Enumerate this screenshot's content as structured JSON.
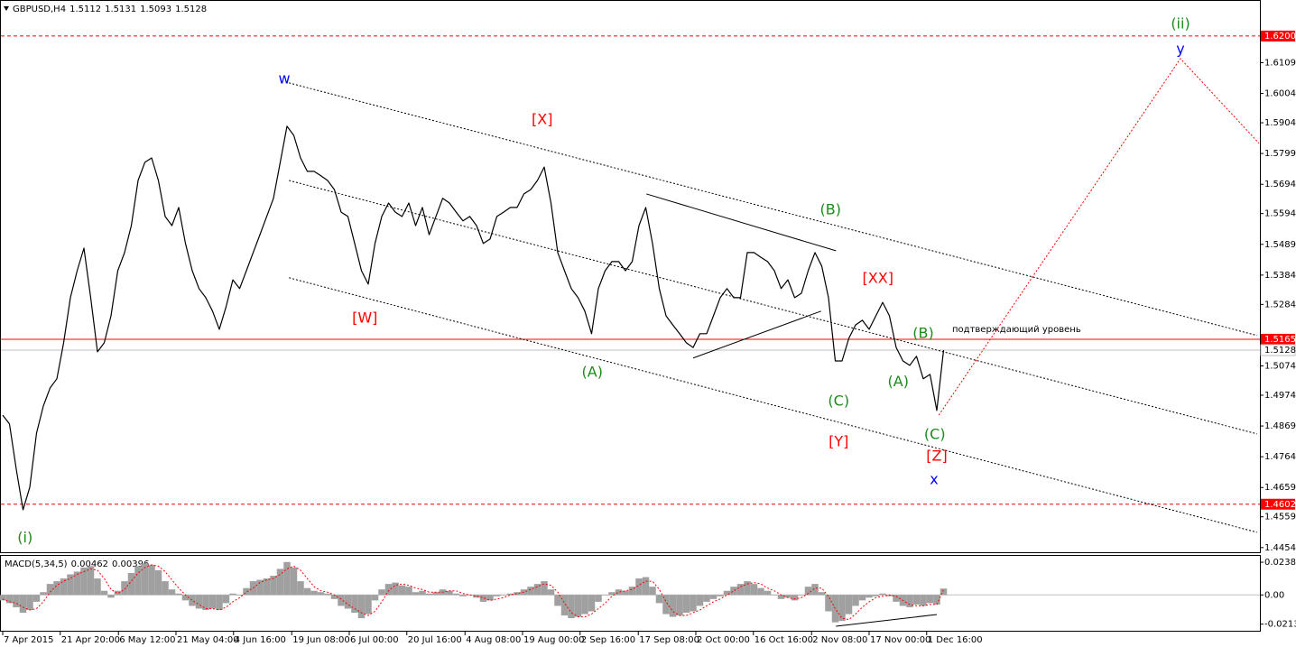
{
  "chart_data": [
    {
      "type": "line",
      "title": "GBPUSD,H4",
      "last_bar": [
        1.5112,
        1.5131,
        1.5093
      ],
      "color": "#000000",
      "grid": false,
      "xlim": [
        0,
        185.6
      ],
      "ylim": [
        1.4438,
        1.6323
      ],
      "xticks": [
        {
          "value": 0,
          "label": "7 Apr 2015"
        },
        {
          "value": 8.5,
          "label": "21 Apr 20:00"
        },
        {
          "value": 17.1,
          "label": "6 May 12:00"
        },
        {
          "value": 25.6,
          "label": "21 May 04:00"
        },
        {
          "value": 34.1,
          "label": "4 Jun 16:00"
        },
        {
          "value": 42.7,
          "label": "19 Jun 08:00"
        },
        {
          "value": 51.2,
          "label": "6 Jul 00:00"
        },
        {
          "value": 59.7,
          "label": "20 Jul 16:00"
        },
        {
          "value": 68.3,
          "label": "4 Aug 08:00"
        },
        {
          "value": 76.8,
          "label": "19 Aug 00:00"
        },
        {
          "value": 85.3,
          "label": "2 Sep 16:00"
        },
        {
          "value": 93.9,
          "label": "17 Sep 08:00"
        },
        {
          "value": 102.4,
          "label": "2 Oct 00:00"
        },
        {
          "value": 110.9,
          "label": "16 Oct 16:00"
        },
        {
          "value": 119.5,
          "label": "2 Nov 08:00"
        },
        {
          "value": 128,
          "label": "17 Nov 00:00"
        },
        {
          "value": 136.5,
          "label": "1 Dec 16:00"
        }
      ],
      "yticks": [
        1.6109,
        1.6004,
        1.5904,
        1.5799,
        1.5694,
        1.5594,
        1.5489,
        1.5384,
        1.5284,
        1.5074,
        1.4974,
        1.4869,
        1.4764,
        1.4659,
        1.4559,
        1.4454
      ],
      "values": [
        1.4906,
        1.4876,
        1.4722,
        1.4583,
        1.466,
        1.4845,
        1.4937,
        1.4999,
        1.503,
        1.5153,
        1.5307,
        1.5399,
        1.5476,
        1.5307,
        1.5122,
        1.5153,
        1.5245,
        1.5399,
        1.5461,
        1.5553,
        1.5707,
        1.5769,
        1.5784,
        1.5707,
        1.5584,
        1.5553,
        1.5615,
        1.5492,
        1.5399,
        1.5338,
        1.5307,
        1.5261,
        1.5199,
        1.5276,
        1.5368,
        1.5338,
        1.5399,
        1.5461,
        1.5522,
        1.5584,
        1.5646,
        1.5769,
        1.5892,
        1.5861,
        1.5784,
        1.5738,
        1.5738,
        1.5723,
        1.5707,
        1.5676,
        1.5599,
        1.5584,
        1.5492,
        1.5399,
        1.5353,
        1.5492,
        1.5584,
        1.563,
        1.5599,
        1.5584,
        1.563,
        1.5553,
        1.5615,
        1.5522,
        1.5584,
        1.5646,
        1.563,
        1.5599,
        1.5569,
        1.5584,
        1.5553,
        1.5492,
        1.5507,
        1.5584,
        1.5599,
        1.5615,
        1.5615,
        1.5661,
        1.5676,
        1.5707,
        1.5753,
        1.563,
        1.5461,
        1.5399,
        1.5338,
        1.5307,
        1.5261,
        1.5184,
        1.5338,
        1.5399,
        1.543,
        1.543,
        1.5399,
        1.543,
        1.5553,
        1.5615,
        1.5492,
        1.5338,
        1.5245,
        1.5214,
        1.5184,
        1.5153,
        1.5137,
        1.5184,
        1.5184,
        1.5245,
        1.5307,
        1.5338,
        1.5307,
        1.5307,
        1.5461,
        1.5461,
        1.5445,
        1.543,
        1.5399,
        1.5338,
        1.5368,
        1.5307,
        1.5322,
        1.5399,
        1.5461,
        1.5415,
        1.5307,
        1.5091,
        1.5091,
        1.5168,
        1.5214,
        1.523,
        1.5199,
        1.5245,
        1.5291,
        1.5245,
        1.5137,
        1.5091,
        1.5076,
        1.5107,
        1.503,
        1.5045,
        1.4922,
        1.5128
      ],
      "levels": [
        {
          "value": 1.62,
          "label": "1.6200",
          "color": "#ff0000",
          "style": "dashed"
        },
        {
          "value": 1.5165,
          "label": "1.5165",
          "color": "#ff0000",
          "style": "solid",
          "text": "подтверждающий уровень"
        },
        {
          "value": 1.4602,
          "label": "1.4602",
          "color": "#ff0000",
          "style": "dashed"
        }
      ],
      "lines": [
        {
          "x": [
            42.3,
            185.3
          ],
          "y": [
            1.604,
            1.5178
          ],
          "color": "#000000",
          "style": "dotted"
        },
        {
          "x": [
            42.3,
            185.3
          ],
          "y": [
            1.5707,
            1.4842
          ],
          "color": "#000000",
          "style": "dotted"
        },
        {
          "x": [
            42.3,
            185.3
          ],
          "y": [
            1.5375,
            1.4506
          ],
          "color": "#000000",
          "style": "dotted"
        },
        {
          "x": [
            95.1,
            123.1
          ],
          "y": [
            1.5661,
            1.5467
          ],
          "color": "#000000",
          "style": "solid"
        },
        {
          "x": [
            102,
            120.9
          ],
          "y": [
            1.5101,
            1.5261
          ],
          "color": "#000000",
          "style": "solid"
        },
        {
          "x": [
            138.3,
            174,
            185.6
          ],
          "y": [
            1.4906,
            1.6123,
            1.5834
          ],
          "color": "#ff0000",
          "style": "dotted"
        }
      ],
      "annotations": [
        {
          "text": "(i)",
          "x": 3.3,
          "y": 1.4485,
          "color": "#1a8c1a"
        },
        {
          "text": "w",
          "x": 41.6,
          "y": 1.6052,
          "color": "#0000ff"
        },
        {
          "text": "[X]",
          "x": 79.7,
          "y": 1.5914,
          "color": "#ff0000"
        },
        {
          "text": "[W]",
          "x": 53.5,
          "y": 1.5236,
          "color": "#ff0000"
        },
        {
          "text": "(A)",
          "x": 87.1,
          "y": 1.5051,
          "color": "#1a8c1a"
        },
        {
          "text": "(B)",
          "x": 122.3,
          "y": 1.5606,
          "color": "#1a8c1a"
        },
        {
          "text": "[XX]",
          "x": 129.3,
          "y": 1.5372,
          "color": "#ff0000"
        },
        {
          "text": "(C)",
          "x": 123.5,
          "y": 1.4953,
          "color": "#1a8c1a"
        },
        {
          "text": "[Y]",
          "x": 123.5,
          "y": 1.4814,
          "color": "#ff0000"
        },
        {
          "text": "(B)",
          "x": 136,
          "y": 1.5184,
          "color": "#1a8c1a"
        },
        {
          "text": "(A)",
          "x": 132.3,
          "y": 1.5018,
          "color": "#1a8c1a"
        },
        {
          "text": "(C)",
          "x": 137.7,
          "y": 1.4839,
          "color": "#1a8c1a"
        },
        {
          "text": "[Z]",
          "x": 138,
          "y": 1.4765,
          "color": "#ff0000"
        },
        {
          "text": "x",
          "x": 137.6,
          "y": 1.4685,
          "color": "#0000ff"
        },
        {
          "text": "(ii)",
          "x": 174,
          "y": 1.624,
          "color": "#1a8c1a"
        },
        {
          "text": "y",
          "x": 174,
          "y": 1.6154,
          "color": "#0000ff"
        }
      ]
    },
    {
      "type": "bar",
      "title": "MACD(5,34,5)",
      "color": "#a0a0a0",
      "signal_color": "#ff0000",
      "xlim": [
        0,
        185.6
      ],
      "ylim": [
        -0.0255,
        0.0285
      ],
      "yticks": [
        0.02386,
        {
          "value": 0,
          "label": "0.00"
        },
        -0.02132
      ],
      "values": [
        -0.004,
        -0.006,
        -0.009,
        -0.013,
        -0.011,
        -0.005,
        0.002,
        0.008,
        0.01,
        0.012,
        0.015,
        0.017,
        0.02,
        0.021,
        0.012,
        0.003,
        -0.002,
        0.003,
        0.01,
        0.016,
        0.021,
        0.023,
        0.022,
        0.018,
        0.01,
        0.004,
        0.001,
        -0.004,
        -0.008,
        -0.01,
        -0.011,
        -0.01,
        -0.011,
        -0.006,
        0.001,
        0,
        0.005,
        0.01,
        0.011,
        0.012,
        0.014,
        0.019,
        0.024,
        0.02,
        0.01,
        0.005,
        0.003,
        0.002,
        0.001,
        -0.003,
        -0.008,
        -0.01,
        -0.013,
        -0.017,
        -0.014,
        -0.004,
        0.004,
        0.008,
        0.009,
        0.007,
        0.006,
        0.002,
        0.003,
        0.001,
        0.002,
        0.004,
        0.003,
        0.001,
        -0.001,
        0,
        -0.002,
        -0.005,
        -0.004,
        -0.001,
        0,
        0.001,
        0.002,
        0.004,
        0.006,
        0.008,
        0.01,
        0.004,
        -0.008,
        -0.015,
        -0.017,
        -0.016,
        -0.014,
        -0.012,
        -0.005,
        0,
        0.002,
        0.004,
        0.003,
        0.006,
        0.012,
        0.013,
        0.006,
        -0.006,
        -0.014,
        -0.016,
        -0.015,
        -0.013,
        -0.012,
        -0.008,
        -0.005,
        -0.003,
        -0.001,
        0.003,
        0.006,
        0.008,
        0.01,
        0.008,
        0.005,
        0.003,
        0,
        -0.003,
        -0.002,
        -0.004,
        0,
        0.006,
        0.008,
        0.002,
        -0.012,
        -0.02,
        -0.019,
        -0.014,
        -0.008,
        -0.004,
        -0.002,
        -0.001,
        0.001,
        -0.001,
        -0.005,
        -0.008,
        -0.009,
        -0.007,
        -0.008,
        -0.006,
        -0.007,
        0.00462
      ],
      "signal": [
        -0.003,
        -0.005,
        -0.006,
        -0.009,
        -0.011,
        -0.01,
        -0.005,
        0.002,
        0.007,
        0.01,
        0.012,
        0.015,
        0.017,
        0.019,
        0.018,
        0.012,
        0.004,
        0.001,
        0.004,
        0.01,
        0.016,
        0.02,
        0.022,
        0.021,
        0.017,
        0.011,
        0.005,
        0,
        -0.004,
        -0.007,
        -0.01,
        -0.01,
        -0.011,
        -0.009,
        -0.005,
        -0.002,
        0.002,
        0.005,
        0.009,
        0.011,
        0.012,
        0.015,
        0.019,
        0.021,
        0.018,
        0.012,
        0.006,
        0.003,
        0.002,
        0,
        -0.003,
        -0.007,
        -0.01,
        -0.013,
        -0.015,
        -0.012,
        -0.005,
        0.003,
        0.007,
        0.008,
        0.007,
        0.005,
        0.004,
        0.002,
        0.002,
        0.002,
        0.003,
        0.003,
        0.001,
        0,
        -0.001,
        -0.002,
        -0.004,
        -0.003,
        -0.002,
        0,
        0.001,
        0.002,
        0.004,
        0.006,
        0.008,
        0.007,
        0.002,
        -0.006,
        -0.013,
        -0.016,
        -0.016,
        -0.014,
        -0.01,
        -0.006,
        -0.001,
        0.002,
        0.003,
        0.004,
        0.007,
        0.01,
        0.01,
        0.004,
        -0.005,
        -0.012,
        -0.015,
        -0.015,
        -0.013,
        -0.011,
        -0.008,
        -0.005,
        -0.003,
        0,
        0.003,
        0.006,
        0.008,
        0.009,
        0.008,
        0.005,
        0.003,
        0,
        -0.002,
        -0.003,
        -0.002,
        0.001,
        0.005,
        0.005,
        -0.001,
        -0.01,
        -0.017,
        -0.018,
        -0.014,
        -0.009,
        -0.005,
        -0.002,
        -0.001,
        0,
        -0.001,
        -0.004,
        -0.007,
        -0.008,
        -0.008,
        -0.007,
        -0.007,
        0.00396
      ],
      "lines": [
        {
          "x": [
            123.1,
            138
          ],
          "y": [
            -0.0229,
            -0.0143
          ],
          "color": "#000000",
          "style": "solid"
        }
      ]
    }
  ]
}
